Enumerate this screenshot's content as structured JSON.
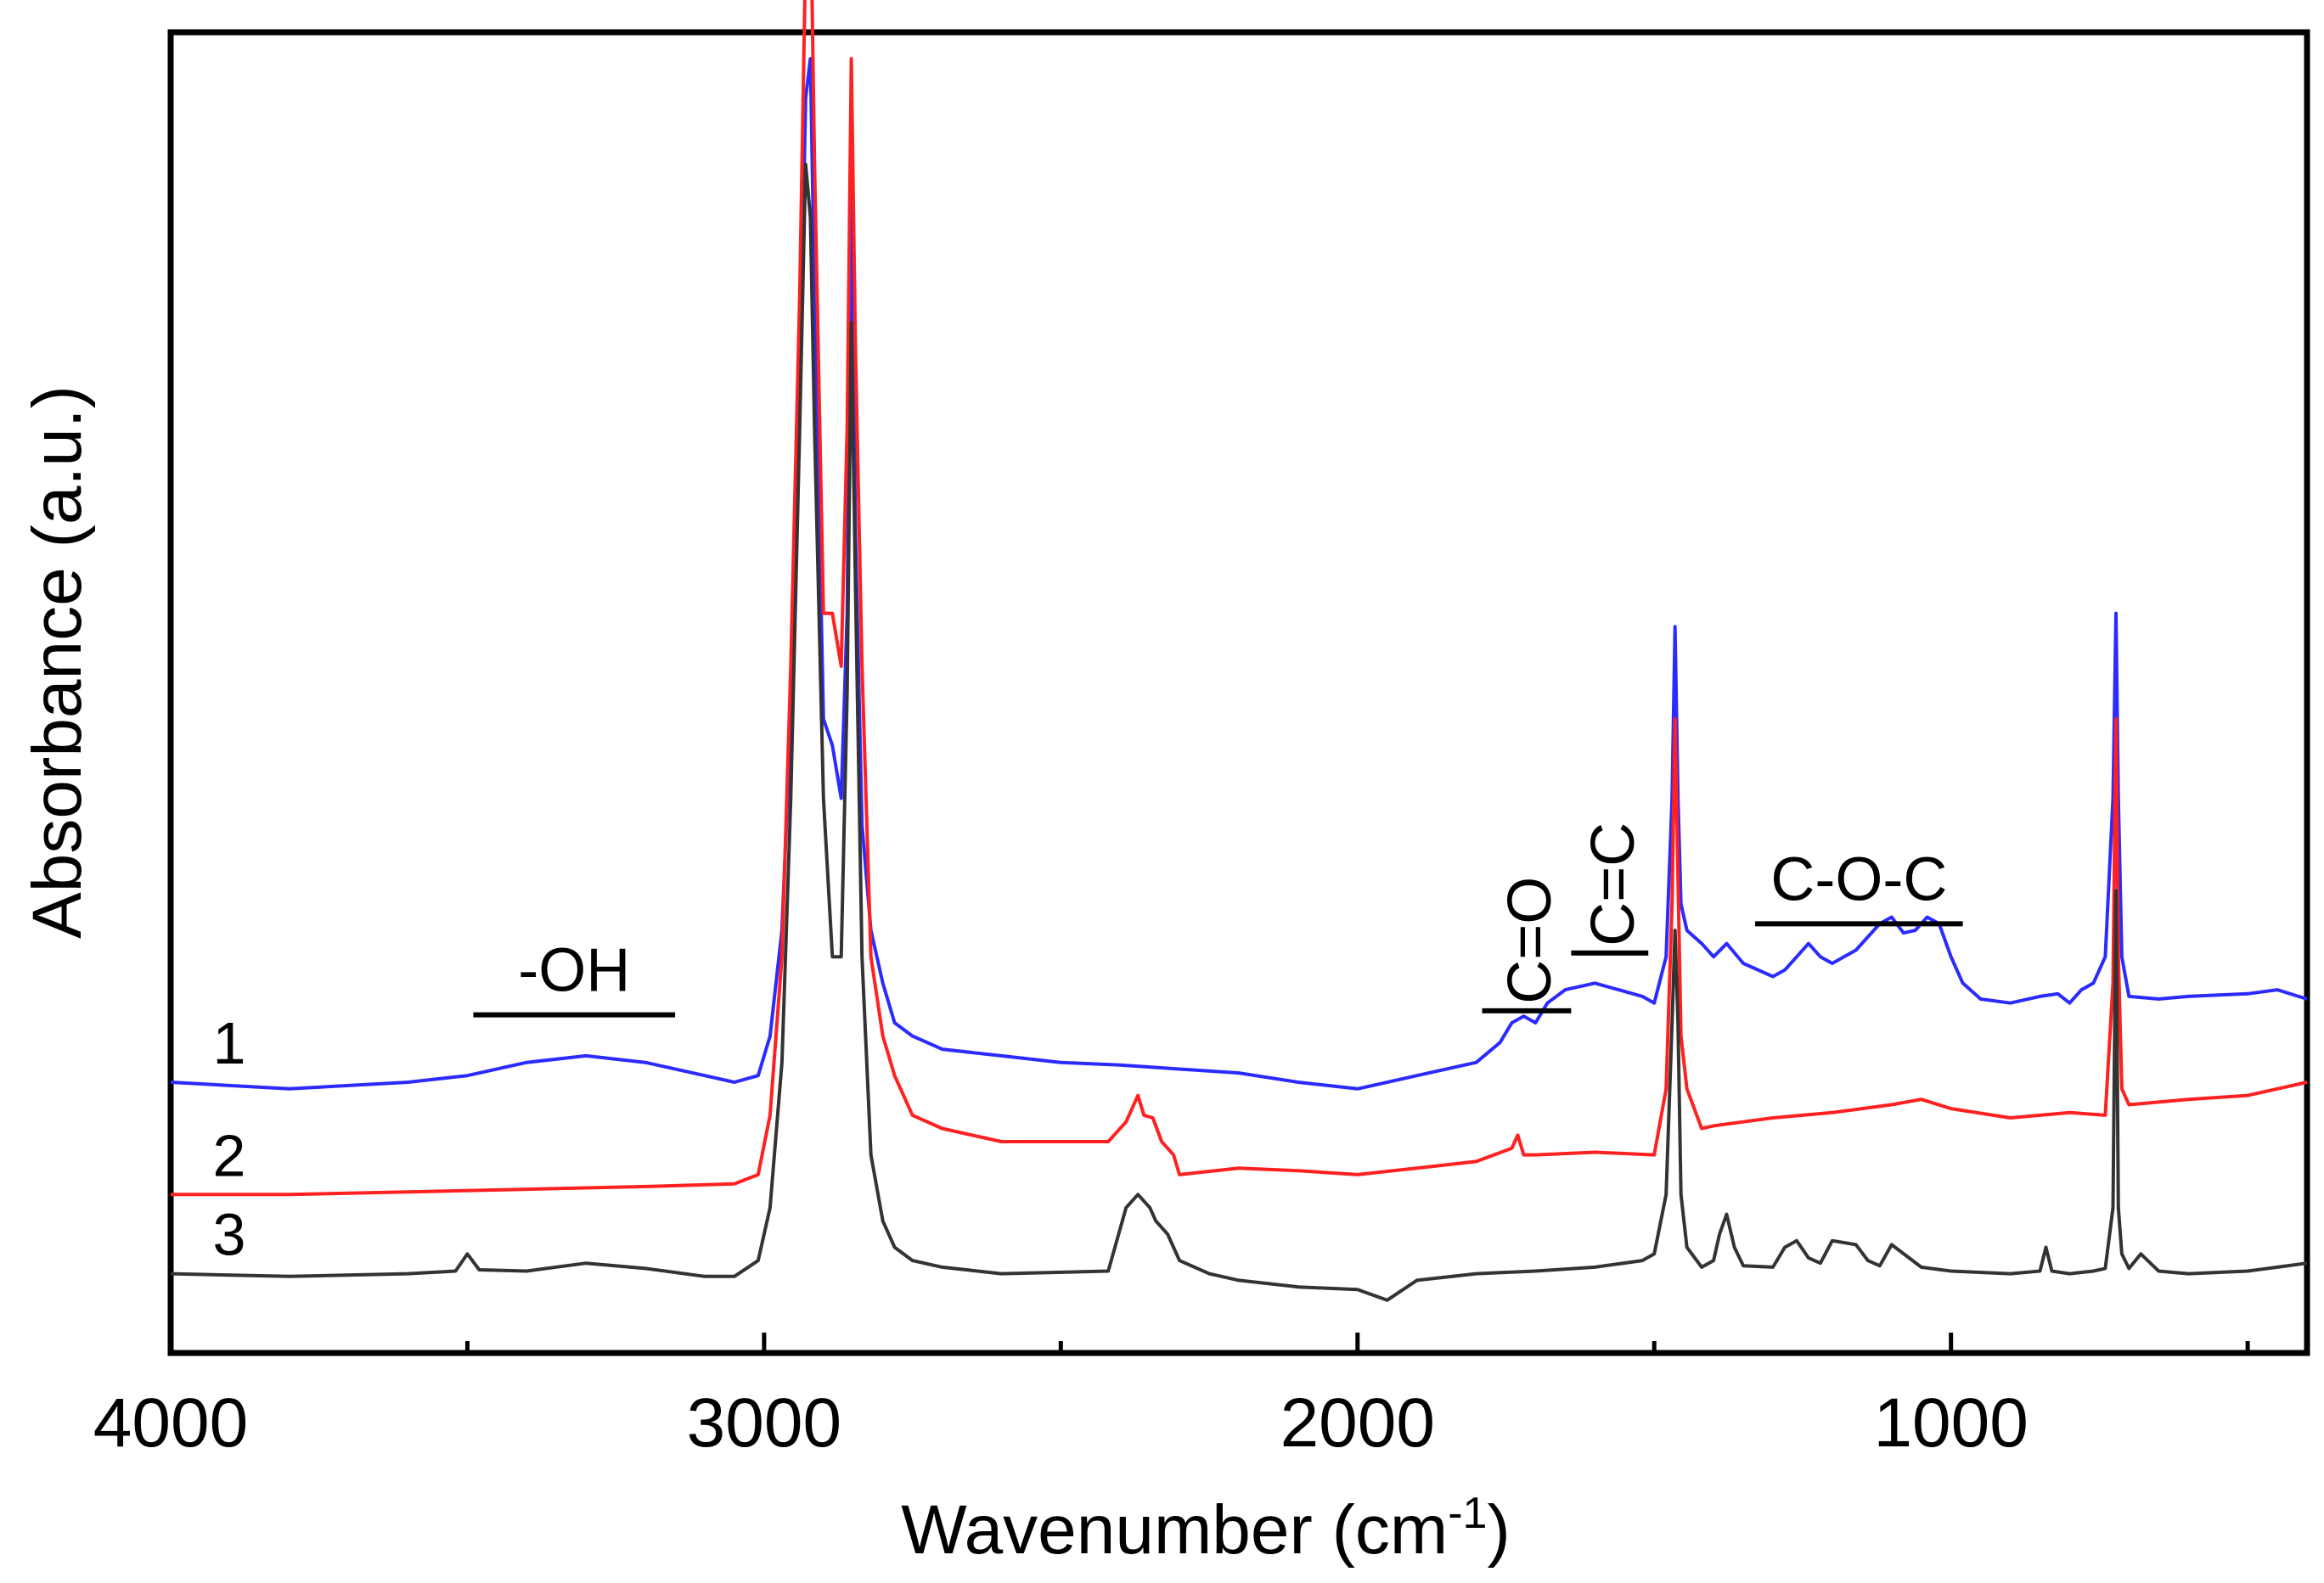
{
  "chart_data": {
    "type": "line",
    "title": "",
    "xlabel": "Wavenumber (cm",
    "xlabel_sup": "-1",
    "xlabel_close": ")",
    "ylabel": "Absorbance (a.u.)",
    "xlim": [
      4000,
      400
    ],
    "x_inverted": true,
    "y_units": "arbitrary",
    "ylim": [
      0,
      1
    ],
    "grid": false,
    "x_ticks_major": [
      4000,
      3000,
      2000,
      1000
    ],
    "x_tick_labels": [
      "4000",
      "3000",
      "2000",
      "1000"
    ],
    "x_ticks_minor": [
      3500,
      2500,
      1500,
      500
    ],
    "colors": {
      "1": "#2b2bff",
      "2": "#ff2020",
      "3": "#333333"
    },
    "series": [
      {
        "name": "1",
        "color": "#2b2bff",
        "x": [
          4000,
          3800,
          3600,
          3500,
          3400,
          3300,
          3200,
          3100,
          3050,
          3010,
          2990,
          2970,
          2955,
          2940,
          2930,
          2922,
          2915,
          2900,
          2885,
          2870,
          2860,
          2853,
          2846,
          2835,
          2820,
          2800,
          2780,
          2750,
          2700,
          2600,
          2500,
          2400,
          2300,
          2200,
          2100,
          2000,
          1900,
          1800,
          1760,
          1740,
          1720,
          1700,
          1680,
          1650,
          1600,
          1560,
          1520,
          1500,
          1480,
          1470,
          1465,
          1460,
          1455,
          1445,
          1420,
          1400,
          1378,
          1350,
          1300,
          1280,
          1260,
          1240,
          1220,
          1200,
          1160,
          1120,
          1100,
          1080,
          1060,
          1040,
          1020,
          1000,
          980,
          950,
          900,
          850,
          820,
          800,
          780,
          760,
          740,
          727,
          722,
          718,
          712,
          700,
          650,
          600,
          500,
          450,
          400
        ],
        "y": [
          0.205,
          0.2,
          0.205,
          0.21,
          0.22,
          0.225,
          0.22,
          0.21,
          0.205,
          0.21,
          0.24,
          0.32,
          0.48,
          0.72,
          0.95,
          0.98,
          0.8,
          0.48,
          0.46,
          0.42,
          0.56,
          0.88,
          0.62,
          0.4,
          0.32,
          0.28,
          0.25,
          0.24,
          0.23,
          0.225,
          0.22,
          0.218,
          0.215,
          0.212,
          0.205,
          0.2,
          0.21,
          0.22,
          0.235,
          0.25,
          0.255,
          0.25,
          0.265,
          0.275,
          0.28,
          0.275,
          0.27,
          0.265,
          0.3,
          0.42,
          0.55,
          0.42,
          0.34,
          0.32,
          0.31,
          0.3,
          0.31,
          0.295,
          0.285,
          0.29,
          0.3,
          0.31,
          0.3,
          0.295,
          0.305,
          0.325,
          0.33,
          0.318,
          0.32,
          0.33,
          0.325,
          0.3,
          0.28,
          0.268,
          0.265,
          0.27,
          0.272,
          0.265,
          0.275,
          0.28,
          0.3,
          0.42,
          0.56,
          0.42,
          0.3,
          0.27,
          0.268,
          0.27,
          0.272,
          0.275,
          0.268
        ]
      },
      {
        "name": "2",
        "color": "#ff2020",
        "x": [
          4000,
          3800,
          3600,
          3400,
          3200,
          3050,
          3010,
          2990,
          2970,
          2955,
          2940,
          2930,
          2922,
          2915,
          2900,
          2885,
          2870,
          2860,
          2853,
          2846,
          2835,
          2820,
          2800,
          2780,
          2750,
          2700,
          2600,
          2420,
          2390,
          2370,
          2360,
          2345,
          2330,
          2310,
          2300,
          2200,
          2100,
          2000,
          1900,
          1800,
          1740,
          1730,
          1720,
          1700,
          1600,
          1500,
          1480,
          1470,
          1465,
          1460,
          1455,
          1445,
          1420,
          1400,
          1350,
          1300,
          1200,
          1100,
          1050,
          1000,
          900,
          800,
          740,
          727,
          722,
          718,
          712,
          700,
          650,
          600,
          500,
          450,
          400
        ],
        "y": [
          0.12,
          0.12,
          0.122,
          0.124,
          0.126,
          0.128,
          0.135,
          0.18,
          0.3,
          0.52,
          0.8,
          1.06,
          1.11,
          0.9,
          0.56,
          0.56,
          0.52,
          0.7,
          0.98,
          0.76,
          0.52,
          0.3,
          0.24,
          0.21,
          0.18,
          0.17,
          0.16,
          0.16,
          0.175,
          0.195,
          0.18,
          0.178,
          0.16,
          0.15,
          0.135,
          0.14,
          0.138,
          0.135,
          0.14,
          0.145,
          0.155,
          0.165,
          0.15,
          0.15,
          0.152,
          0.15,
          0.2,
          0.34,
          0.48,
          0.36,
          0.24,
          0.2,
          0.17,
          0.172,
          0.175,
          0.178,
          0.182,
          0.188,
          0.192,
          0.185,
          0.178,
          0.182,
          0.18,
          0.28,
          0.48,
          0.3,
          0.2,
          0.188,
          0.19,
          0.192,
          0.195,
          0.2,
          0.205
        ]
      },
      {
        "name": "3",
        "color": "#333333",
        "x": [
          4000,
          3800,
          3600,
          3520,
          3500,
          3480,
          3400,
          3300,
          3200,
          3100,
          3050,
          3010,
          2990,
          2970,
          2955,
          2940,
          2930,
          2922,
          2915,
          2900,
          2885,
          2870,
          2860,
          2853,
          2846,
          2835,
          2820,
          2800,
          2780,
          2750,
          2700,
          2600,
          2420,
          2390,
          2370,
          2350,
          2340,
          2320,
          2300,
          2250,
          2200,
          2100,
          2000,
          1950,
          1900,
          1800,
          1700,
          1600,
          1520,
          1500,
          1480,
          1470,
          1465,
          1460,
          1455,
          1445,
          1420,
          1400,
          1390,
          1378,
          1365,
          1350,
          1300,
          1280,
          1260,
          1240,
          1220,
          1200,
          1160,
          1140,
          1120,
          1100,
          1050,
          1000,
          900,
          850,
          840,
          830,
          800,
          760,
          740,
          727,
          722,
          718,
          712,
          700,
          680,
          650,
          600,
          500,
          450,
          400
        ],
        "y": [
          0.06,
          0.058,
          0.06,
          0.062,
          0.075,
          0.063,
          0.062,
          0.068,
          0.064,
          0.058,
          0.058,
          0.07,
          0.11,
          0.22,
          0.42,
          0.7,
          0.9,
          0.86,
          0.7,
          0.42,
          0.3,
          0.3,
          0.5,
          0.78,
          0.58,
          0.3,
          0.15,
          0.1,
          0.08,
          0.07,
          0.065,
          0.06,
          0.062,
          0.11,
          0.12,
          0.11,
          0.1,
          0.09,
          0.07,
          0.06,
          0.055,
          0.05,
          0.048,
          0.04,
          0.055,
          0.06,
          0.062,
          0.065,
          0.07,
          0.075,
          0.12,
          0.25,
          0.32,
          0.25,
          0.12,
          0.08,
          0.065,
          0.07,
          0.09,
          0.105,
          0.08,
          0.066,
          0.065,
          0.08,
          0.085,
          0.072,
          0.068,
          0.085,
          0.082,
          0.07,
          0.066,
          0.082,
          0.065,
          0.062,
          0.06,
          0.062,
          0.08,
          0.062,
          0.06,
          0.062,
          0.064,
          0.11,
          0.35,
          0.11,
          0.075,
          0.064,
          0.075,
          0.062,
          0.06,
          0.062,
          0.065,
          0.068
        ]
      }
    ],
    "annotations": [
      {
        "name": "oh-band",
        "text": "-OH",
        "x_start": 3490,
        "x_end": 3150,
        "vertical": false
      },
      {
        "name": "co-band",
        "text": "C=O",
        "x_start": 1790,
        "x_end": 1640,
        "vertical": true
      },
      {
        "name": "cc-band",
        "text": "C=C",
        "x_start": 1640,
        "x_end": 1510,
        "vertical": true
      },
      {
        "name": "coc-band",
        "text": "C-O-C",
        "x_start": 1330,
        "x_end": 980,
        "vertical": false
      }
    ]
  }
}
